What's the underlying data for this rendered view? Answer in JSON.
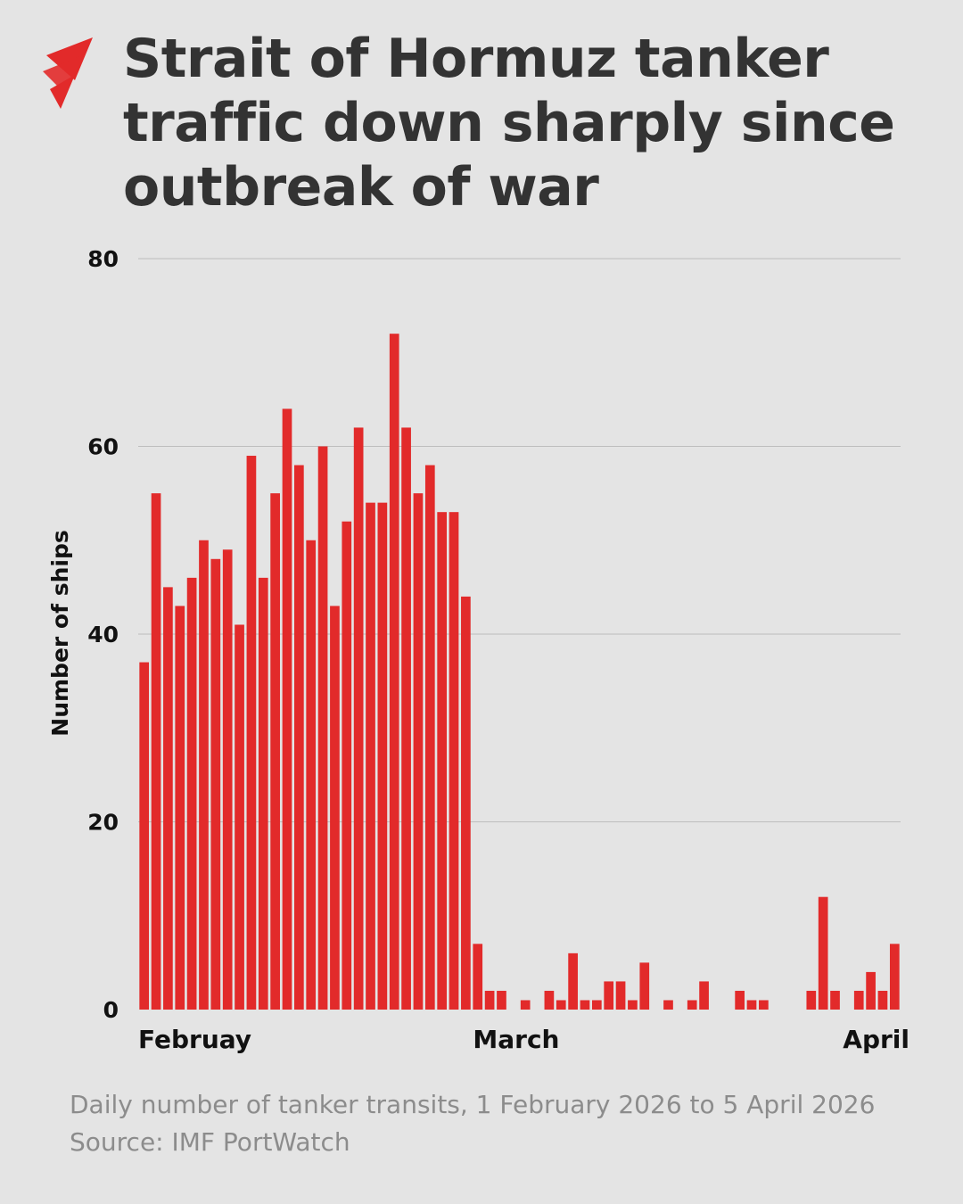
{
  "header": {
    "title": "Strait of Hormuz tanker traffic down sharply since outbreak of war",
    "logo_icon": "sbs-logo-icon"
  },
  "colors": {
    "bar": "#e22a2a",
    "gridline": "#bdbdbd",
    "title": "#333333",
    "footer": "#8c8c8c",
    "background": "#e4e4e4"
  },
  "chart_data": {
    "type": "bar",
    "title": "Strait of Hormuz tanker traffic down sharply since outbreak of war",
    "xlabel": "",
    "ylabel": "Number of ships",
    "ylim": [
      0,
      80
    ],
    "yticks": [
      0,
      20,
      40,
      60,
      80
    ],
    "grid": true,
    "xtick_labels": [
      {
        "label": "Februay",
        "index": 0
      },
      {
        "label": "March",
        "index": 28
      },
      {
        "label": "April",
        "index": 62
      }
    ],
    "categories": [
      "Feb 1",
      "Feb 2",
      "Feb 3",
      "Feb 4",
      "Feb 5",
      "Feb 6",
      "Feb 7",
      "Feb 8",
      "Feb 9",
      "Feb 10",
      "Feb 11",
      "Feb 12",
      "Feb 13",
      "Feb 14",
      "Feb 15",
      "Feb 16",
      "Feb 17",
      "Feb 18",
      "Feb 19",
      "Feb 20",
      "Feb 21",
      "Feb 22",
      "Feb 23",
      "Feb 24",
      "Feb 25",
      "Feb 26",
      "Feb 27",
      "Feb 28",
      "Mar 1",
      "Mar 2",
      "Mar 3",
      "Mar 4",
      "Mar 5",
      "Mar 6",
      "Mar 7",
      "Mar 8",
      "Mar 9",
      "Mar 10",
      "Mar 11",
      "Mar 12",
      "Mar 13",
      "Mar 14",
      "Mar 15",
      "Mar 16",
      "Mar 17",
      "Mar 18",
      "Mar 19",
      "Mar 20",
      "Mar 21",
      "Mar 22",
      "Mar 23",
      "Mar 24",
      "Mar 25",
      "Mar 26",
      "Mar 27",
      "Mar 28",
      "Mar 29",
      "Mar 30",
      "Mar 31",
      "Apr 1",
      "Apr 2",
      "Apr 3",
      "Apr 4",
      "Apr 5"
    ],
    "values": [
      37,
      55,
      45,
      43,
      46,
      50,
      48,
      49,
      41,
      59,
      46,
      55,
      64,
      58,
      50,
      60,
      43,
      52,
      62,
      54,
      54,
      72,
      62,
      55,
      58,
      53,
      53,
      44,
      7,
      2,
      2,
      0,
      1,
      0,
      2,
      1,
      6,
      1,
      1,
      3,
      3,
      1,
      5,
      0,
      1,
      0,
      1,
      3,
      0,
      0,
      2,
      1,
      1,
      0,
      0,
      0,
      2,
      12,
      2,
      0,
      2,
      4,
      2,
      7
    ]
  },
  "footer": {
    "caption": "Daily number of tanker transits, 1 February 2026 to 5 April 2026",
    "source": "Source: IMF PortWatch"
  }
}
